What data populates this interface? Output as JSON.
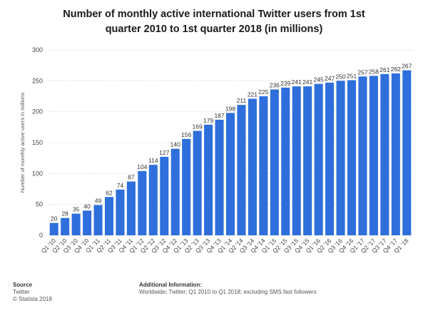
{
  "chart_data": {
    "type": "bar",
    "title_line1": "Number of monthly active international Twitter users from 1st",
    "title_line2": "quarter 2010 to 1st quarter 2018 (in millions)",
    "xlabel": "",
    "ylabel": "Number of monthly active users in millions",
    "ylim": [
      0,
      300
    ],
    "yticks": [
      "0",
      "50",
      "100",
      "150",
      "200",
      "250",
      "300"
    ],
    "grid": true,
    "bar_color": "#2e6fdc",
    "categories": [
      "Q1 '10",
      "Q2 '10",
      "Q3 '10",
      "Q4 '10",
      "Q1 '11",
      "Q2 '11",
      "Q3 '11",
      "Q4 '11",
      "Q1 '12",
      "Q2 '12",
      "Q3 '12",
      "Q4 '12",
      "Q1 '13",
      "Q2 '13",
      "Q3 '13",
      "Q4 '13",
      "Q1 '14",
      "Q2 '14",
      "Q3 '14",
      "Q4 '14",
      "Q1 '15",
      "Q2 '15",
      "Q3 '15",
      "Q4 '15",
      "Q1 '16",
      "Q2 '16",
      "Q3 '16",
      "Q4 '16",
      "Q1 '17",
      "Q2 '17",
      "Q3 '17",
      "Q4 '17",
      "Q1 '18"
    ],
    "values": [
      20,
      28,
      35,
      40,
      49,
      62,
      74,
      87,
      104,
      114,
      127,
      140,
      156,
      169,
      179,
      187,
      198,
      211,
      221,
      225,
      236,
      239,
      241,
      241,
      245,
      247,
      250,
      251,
      257,
      258,
      261,
      262,
      267
    ],
    "labels": [
      "20",
      "28",
      "35",
      "40",
      "49",
      "62",
      "74",
      "87",
      "104",
      "114",
      "127",
      "140",
      "156",
      "169",
      "179",
      "187",
      "198",
      "211",
      "221",
      "225",
      "236",
      "239",
      "241",
      "241",
      "245",
      "247",
      "250",
      "251",
      "257",
      "258",
      "261",
      "262",
      "267"
    ]
  },
  "footer": {
    "source_heading": "Source",
    "source_name": "Twitter",
    "copyright": "© Statista 2018",
    "info_heading": "Additional Information:",
    "info_text": "Worldwide; Twitter; Q1 2010 to Q1 2018; excluding SMS fast followers"
  }
}
